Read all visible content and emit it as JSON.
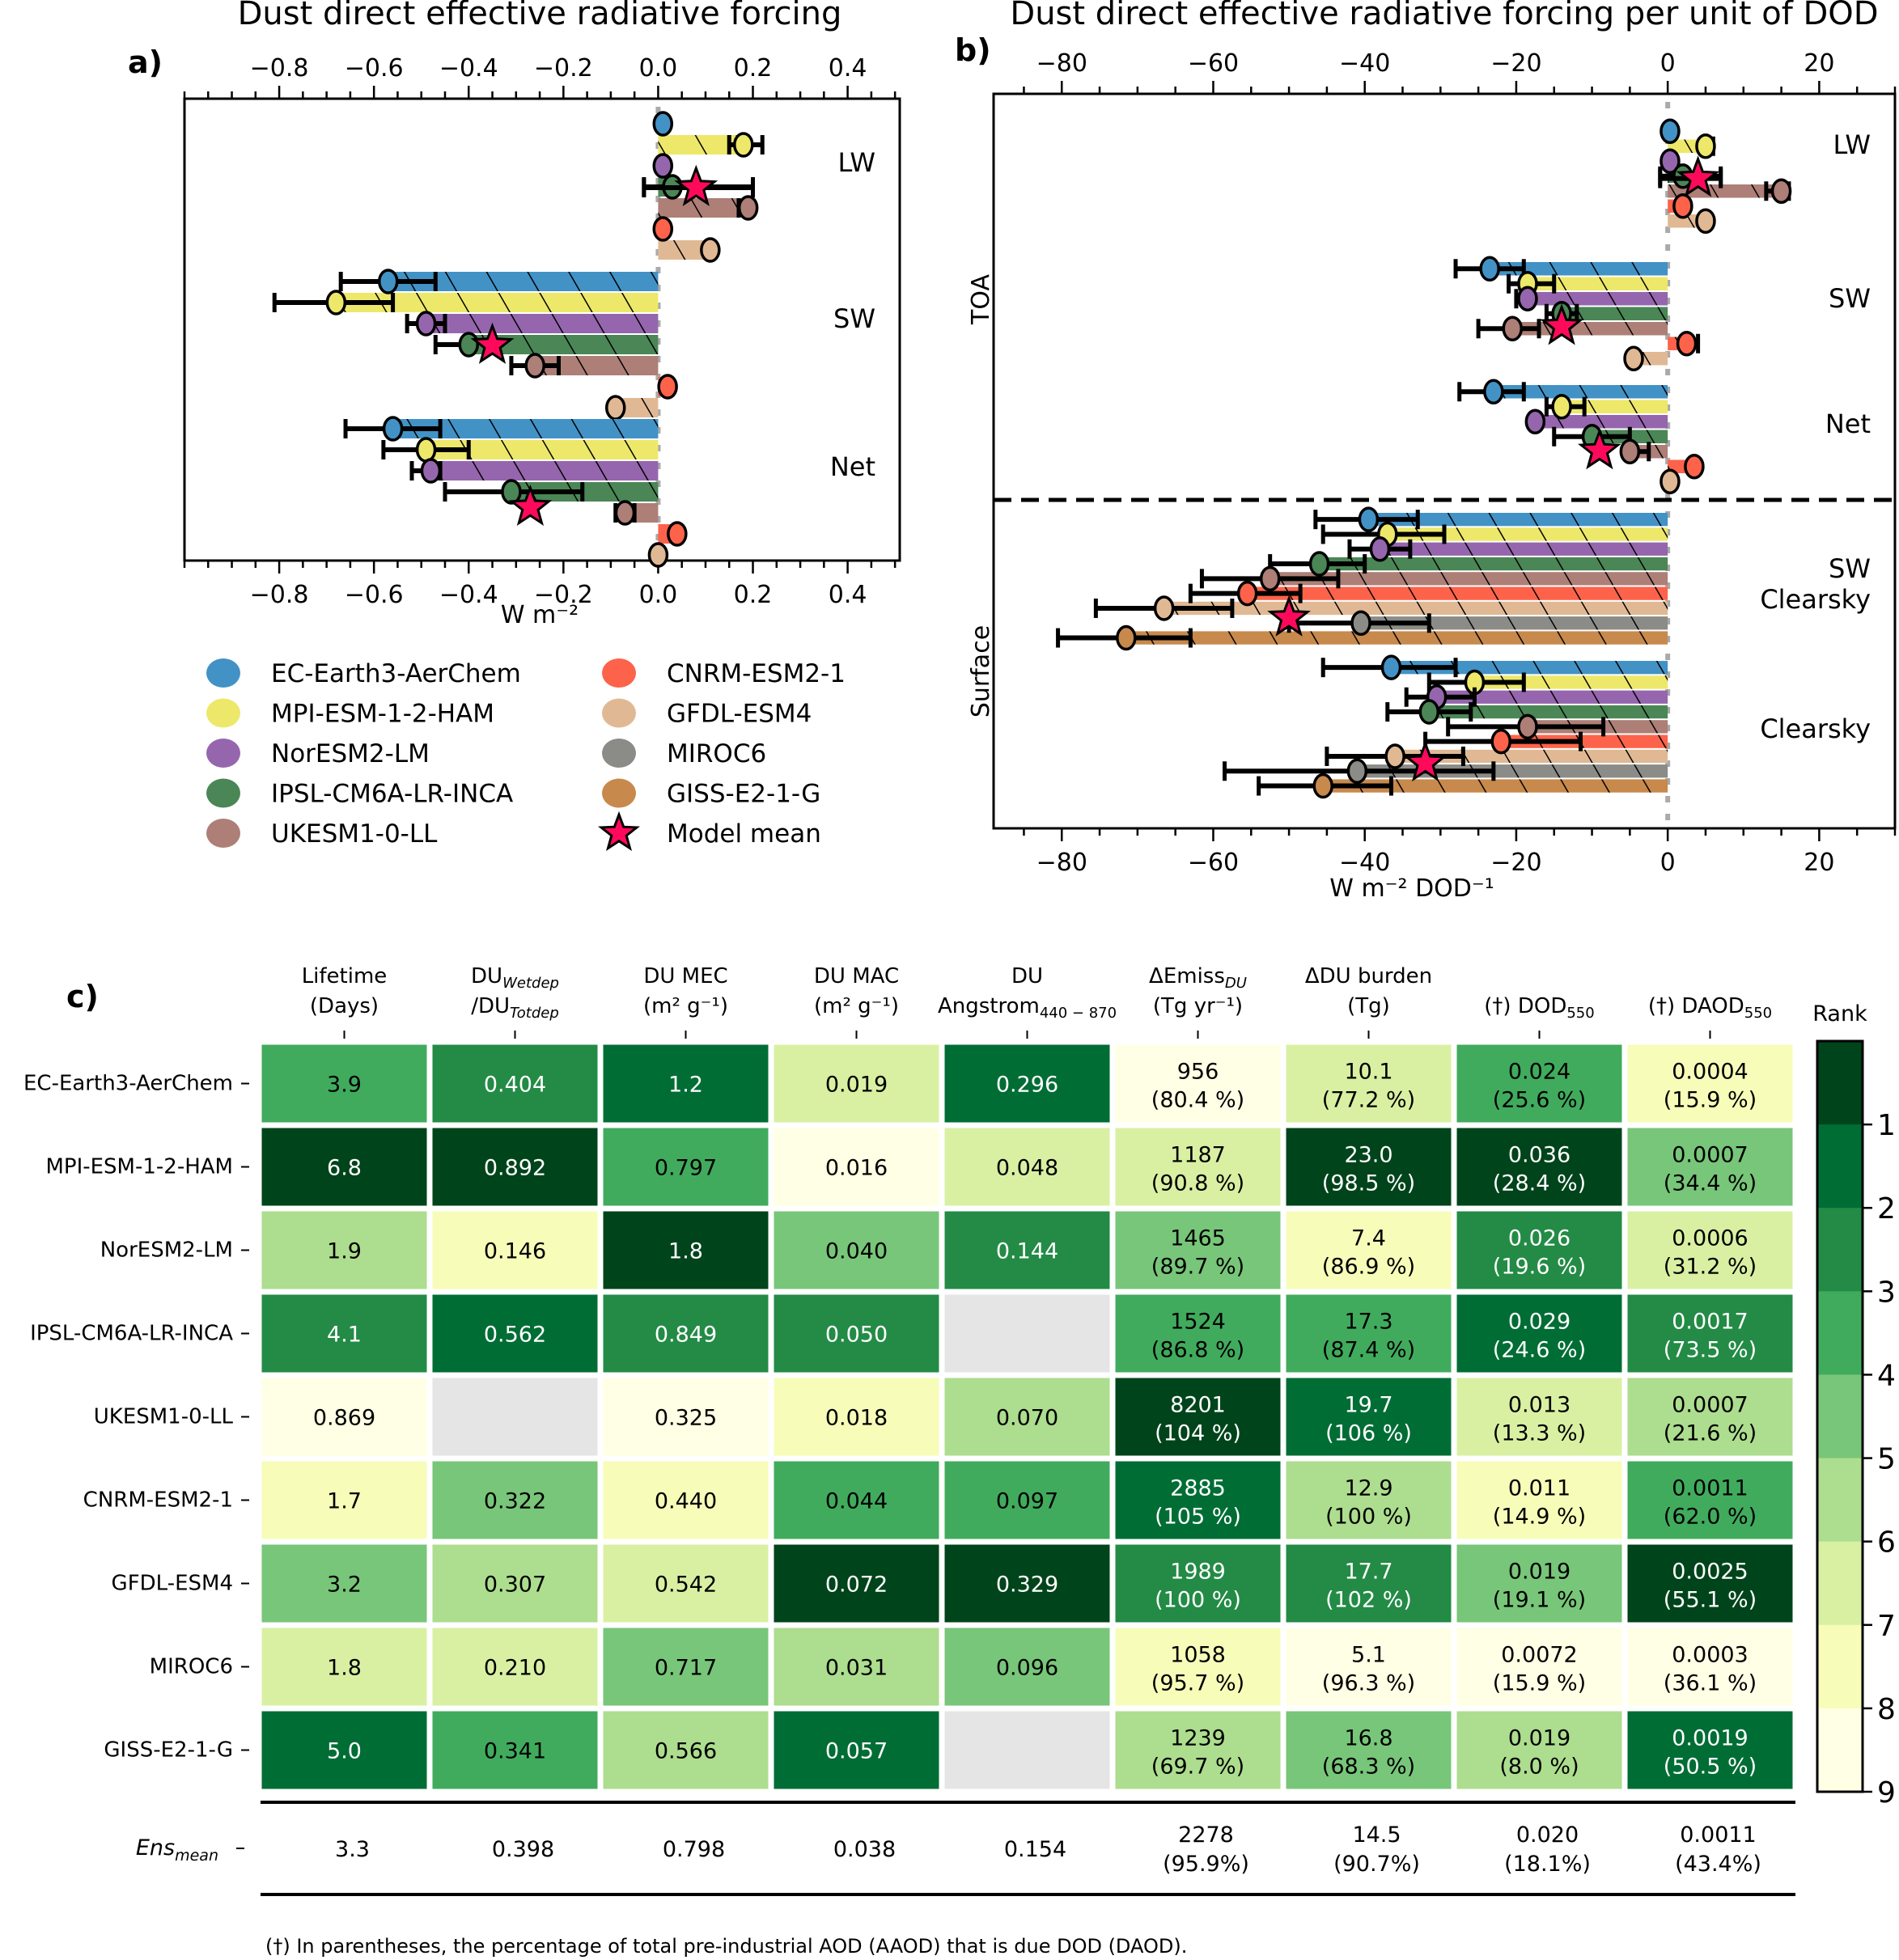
{
  "models": [
    {
      "name": "EC-Earth3-AerChem",
      "color": "#4292c6"
    },
    {
      "name": "MPI-ESM-1-2-HAM",
      "color": "#ede86a"
    },
    {
      "name": "NorESM2-LM",
      "color": "#9566ad"
    },
    {
      "name": "IPSL-CM6A-LR-INCA",
      "color": "#4b8656"
    },
    {
      "name": "UKESM1-0-LL",
      "color": "#ad7f77"
    },
    {
      "name": "CNRM-ESM2-1",
      "color": "#fd634a"
    },
    {
      "name": "GFDL-ESM4",
      "color": "#e0b994"
    },
    {
      "name": "MIROC6",
      "color": "#8b8c87"
    },
    {
      "name": "GISS-E2-1-G",
      "color": "#c7894c"
    }
  ],
  "legend": {
    "mean_label": "Model mean",
    "mean_color": "#ff0a5b"
  },
  "chart_data": [
    {
      "id": "a",
      "panel_label": "a)",
      "type": "bar",
      "orientation": "horizontal",
      "title": "Dust direct effective radiative forcing",
      "xlabel": "W m⁻²",
      "xlim": [
        -1.0,
        0.51
      ],
      "xticks": [
        -0.8,
        -0.6,
        -0.4,
        -0.2,
        0.0,
        0.2,
        0.4
      ],
      "xticklabels": [
        "−0.8",
        "−0.6",
        "−0.4",
        "−0.2",
        "0.0",
        "0.2",
        "0.4"
      ],
      "groups": [
        {
          "label": "LW",
          "values": [
            0.01,
            0.18,
            0.01,
            0.03,
            0.19,
            0.01,
            0.11
          ],
          "errors": [
            null,
            [
              0.15,
              0.22
            ],
            null,
            [
              -0.03,
              0.2
            ],
            [
              0.17,
              0.2
            ],
            null,
            null
          ],
          "mean": 0.08,
          "mean_err": [
            -0.03,
            0.2
          ]
        },
        {
          "label": "SW",
          "values": [
            -0.57,
            -0.68,
            -0.49,
            -0.4,
            -0.26,
            0.02,
            -0.09
          ],
          "errors": [
            [
              -0.67,
              -0.47
            ],
            [
              -0.81,
              -0.56
            ],
            [
              -0.53,
              -0.45
            ],
            [
              -0.47,
              -0.4
            ],
            [
              -0.31,
              -0.21
            ],
            null,
            [
              -0.1,
              -0.09
            ]
          ],
          "mean": -0.35,
          "mean_err": null
        },
        {
          "label": "Net",
          "values": [
            -0.56,
            -0.49,
            -0.48,
            -0.31,
            -0.07,
            0.04,
            0.0
          ],
          "errors": [
            [
              -0.66,
              -0.46
            ],
            [
              -0.58,
              -0.4
            ],
            [
              -0.52,
              -0.46
            ],
            [
              -0.45,
              -0.16
            ],
            [
              -0.09,
              -0.05
            ],
            null,
            null
          ],
          "mean": -0.27,
          "mean_err": null
        }
      ]
    },
    {
      "id": "b",
      "panel_label": "b)",
      "type": "bar",
      "orientation": "horizontal",
      "title": "Dust direct effective radiative forcing per unit of DOD",
      "xlabel": "W m⁻² DOD⁻¹",
      "xlim": [
        -89,
        30
      ],
      "xticks": [
        -80,
        -60,
        -40,
        -20,
        0,
        20
      ],
      "xticklabels": [
        "−80",
        "−60",
        "−40",
        "−20",
        "0",
        "20"
      ],
      "section_labels": [
        "TOA",
        "Surface"
      ],
      "groups": [
        {
          "label": "LW",
          "section": "TOA",
          "values": [
            0.3,
            5,
            0.3,
            2,
            15,
            2,
            5
          ],
          "errors": [
            null,
            [
              5,
              6
            ],
            null,
            [
              -1,
              7
            ],
            [
              13,
              16
            ],
            null,
            null
          ],
          "mean": 4,
          "mean_err": [
            -1,
            7
          ]
        },
        {
          "label": "SW",
          "section": "TOA",
          "values": [
            -23.5,
            -18.5,
            -18.5,
            -14,
            -20.5,
            2.5,
            -4.5
          ],
          "errors": [
            [
              -28,
              -19
            ],
            [
              -21,
              -15
            ],
            [
              -20,
              -18
            ],
            [
              -16,
              -12
            ],
            [
              -25,
              -17
            ],
            [
              2,
              4
            ],
            null
          ],
          "mean": -14,
          "mean_err": null
        },
        {
          "label": "Net",
          "section": "TOA",
          "values": [
            -23,
            -14,
            -17.5,
            -10,
            -5,
            3.5,
            0.3
          ],
          "errors": [
            [
              -27.5,
              -19
            ],
            [
              -16,
              -11
            ],
            [
              -18,
              -17
            ],
            [
              -15,
              -5
            ],
            [
              -5,
              -2.5
            ],
            [
              3,
              4
            ],
            null
          ],
          "mean": -9,
          "mean_err": null
        },
        {
          "label": "SW\nClearsky",
          "section": "Surface",
          "values": [
            -39.5,
            -37,
            -38,
            -46,
            -52.5,
            -55.5,
            -66.5,
            -40.5,
            -71.5
          ],
          "errors": [
            [
              -46.5,
              -33
            ],
            [
              -45.5,
              -29.5
            ],
            [
              -42,
              -34
            ],
            [
              -52.5,
              -40
            ],
            [
              -61.5,
              -43.5
            ],
            [
              -63,
              -48.5
            ],
            [
              -75.5,
              -57.5
            ],
            [
              -50,
              -31.5
            ],
            [
              -80.5,
              -63
            ]
          ],
          "mean": -50,
          "mean_err": null
        },
        {
          "label": "Clearsky",
          "section": "Surface",
          "values": [
            -36.5,
            -25.5,
            -30.5,
            -31.5,
            -18.5,
            -22,
            -36,
            -41,
            -45.5
          ],
          "errors": [
            [
              -45.5,
              -28
            ],
            [
              -31.5,
              -19
            ],
            [
              -34.5,
              -25.5
            ],
            [
              -37,
              -26
            ],
            [
              -29,
              -8.5
            ],
            [
              -32,
              -11.5
            ],
            [
              -45,
              -27
            ],
            [
              -58.5,
              -23
            ],
            [
              -54,
              -36.5
            ]
          ],
          "mean": -32,
          "mean_err": null
        }
      ]
    },
    {
      "id": "c",
      "panel_label": "c)",
      "type": "heatmap",
      "columns": [
        {
          "main": "Lifetime",
          "sub": "(Days)"
        },
        {
          "main": "DU",
          "main_sub": "Wetdep",
          "sub": "/DU",
          "sub_sub": "Totdep"
        },
        {
          "main": "DU MEC",
          "sub": "(m² g⁻¹)"
        },
        {
          "main": "DU MAC",
          "sub": "(m² g⁻¹)"
        },
        {
          "main": "DU",
          "sub": "Angstrom",
          "sub_sub": "440 − 870"
        },
        {
          "main": "ΔEmiss",
          "main_sub": "DU",
          "sub": "(Tg yr⁻¹)"
        },
        {
          "main": "ΔDU burden",
          "sub": "(Tg)"
        },
        {
          "main": "",
          "sub": "(†) DOD",
          "sub_sub": "550"
        },
        {
          "main": "",
          "sub": "(†) DAOD",
          "sub_sub": "550"
        }
      ],
      "rows": [
        {
          "model": "EC-Earth3-AerChem",
          "cells": [
            [
              "3.9",
              ""
            ],
            [
              "0.404",
              ""
            ],
            [
              "1.2",
              ""
            ],
            [
              "0.019",
              ""
            ],
            [
              "0.296",
              ""
            ],
            [
              "956",
              "(80.4 %)"
            ],
            [
              "10.1",
              "(77.2 %)"
            ],
            [
              "0.024",
              "(25.6 %)"
            ],
            [
              "0.0004",
              "(15.9 %)"
            ]
          ],
          "ranks": [
            4,
            3,
            2,
            7,
            2,
            9,
            7,
            4,
            8
          ]
        },
        {
          "model": "MPI-ESM-1-2-HAM",
          "cells": [
            [
              "6.8",
              ""
            ],
            [
              "0.892",
              ""
            ],
            [
              "0.797",
              ""
            ],
            [
              "0.016",
              ""
            ],
            [
              "0.048",
              ""
            ],
            [
              "1187",
              "(90.8 %)"
            ],
            [
              "23.0",
              "(98.5 %)"
            ],
            [
              "0.036",
              "(28.4 %)"
            ],
            [
              "0.0007",
              "(34.4 %)"
            ]
          ],
          "ranks": [
            1,
            1,
            4,
            9,
            7,
            7,
            1,
            1,
            5
          ]
        },
        {
          "model": "NorESM2-LM",
          "cells": [
            [
              "1.9",
              ""
            ],
            [
              "0.146",
              ""
            ],
            [
              "1.8",
              ""
            ],
            [
              "0.040",
              ""
            ],
            [
              "0.144",
              ""
            ],
            [
              "1465",
              "(89.7 %)"
            ],
            [
              "7.4",
              "(86.9 %)"
            ],
            [
              "0.026",
              "(19.6 %)"
            ],
            [
              "0.0006",
              "(31.2 %)"
            ]
          ],
          "ranks": [
            6,
            8,
            1,
            5,
            3,
            5,
            8,
            3,
            7
          ]
        },
        {
          "model": "IPSL-CM6A-LR-INCA",
          "cells": [
            [
              "4.1",
              ""
            ],
            [
              "0.562",
              ""
            ],
            [
              "0.849",
              ""
            ],
            [
              "0.050",
              ""
            ],
            [
              "",
              ""
            ],
            [
              "1524",
              "(86.8 %)"
            ],
            [
              "17.3",
              "(87.4 %)"
            ],
            [
              "0.029",
              "(24.6 %)"
            ],
            [
              "0.0017",
              "(73.5 %)"
            ]
          ],
          "ranks": [
            3,
            2,
            3,
            3,
            null,
            4,
            4,
            2,
            3
          ]
        },
        {
          "model": "UKESM1-0-LL",
          "cells": [
            [
              "0.869",
              ""
            ],
            [
              "",
              ""
            ],
            [
              "0.325",
              ""
            ],
            [
              "0.018",
              ""
            ],
            [
              "0.070",
              ""
            ],
            [
              "8201",
              "(104 %)"
            ],
            [
              "19.7",
              "(106 %)"
            ],
            [
              "0.013",
              "(13.3 %)"
            ],
            [
              "0.0007",
              "(21.6 %)"
            ]
          ],
          "ranks": [
            9,
            null,
            9,
            8,
            6,
            1,
            2,
            7,
            6
          ]
        },
        {
          "model": "CNRM-ESM2-1",
          "cells": [
            [
              "1.7",
              ""
            ],
            [
              "0.322",
              ""
            ],
            [
              "0.440",
              ""
            ],
            [
              "0.044",
              ""
            ],
            [
              "0.097",
              ""
            ],
            [
              "2885",
              "(105 %)"
            ],
            [
              "12.9",
              "(100 %)"
            ],
            [
              "0.011",
              "(14.9 %)"
            ],
            [
              "0.0011",
              "(62.0 %)"
            ]
          ],
          "ranks": [
            8,
            5,
            8,
            4,
            4,
            2,
            6,
            8,
            4
          ]
        },
        {
          "model": "GFDL-ESM4",
          "cells": [
            [
              "3.2",
              ""
            ],
            [
              "0.307",
              ""
            ],
            [
              "0.542",
              ""
            ],
            [
              "0.072",
              ""
            ],
            [
              "0.329",
              ""
            ],
            [
              "1989",
              "(100 %)"
            ],
            [
              "17.7",
              "(102 %)"
            ],
            [
              "0.019",
              "(19.1 %)"
            ],
            [
              "0.0025",
              "(55.1 %)"
            ]
          ],
          "ranks": [
            5,
            6,
            7,
            1,
            1,
            3,
            3,
            5,
            1
          ]
        },
        {
          "model": "MIROC6",
          "cells": [
            [
              "1.8",
              ""
            ],
            [
              "0.210",
              ""
            ],
            [
              "0.717",
              ""
            ],
            [
              "0.031",
              ""
            ],
            [
              "0.096",
              ""
            ],
            [
              "1058",
              "(95.7 %)"
            ],
            [
              "5.1",
              "(96.3 %)"
            ],
            [
              "0.0072",
              "(15.9 %)"
            ],
            [
              "0.0003",
              "(36.1 %)"
            ]
          ],
          "ranks": [
            7,
            7,
            5,
            6,
            5,
            8,
            9,
            9,
            9
          ]
        },
        {
          "model": "GISS-E2-1-G",
          "cells": [
            [
              "5.0",
              ""
            ],
            [
              "0.341",
              ""
            ],
            [
              "0.566",
              ""
            ],
            [
              "0.057",
              ""
            ],
            [
              "",
              ""
            ],
            [
              "1239",
              "(69.7 %)"
            ],
            [
              "16.8",
              "(68.3 %)"
            ],
            [
              "0.019",
              "(8.0 %)"
            ],
            [
              "0.0019",
              "(50.5 %)"
            ]
          ],
          "ranks": [
            2,
            4,
            6,
            2,
            null,
            6,
            5,
            6,
            2
          ]
        }
      ],
      "ensemble": {
        "label": "Ens",
        "label_sub": "mean",
        "cells": [
          [
            "3.3",
            ""
          ],
          [
            "0.398",
            ""
          ],
          [
            "0.798",
            ""
          ],
          [
            "0.038",
            ""
          ],
          [
            "0.154",
            ""
          ],
          [
            "2278",
            "(95.9%)"
          ],
          [
            "14.5",
            "(90.7%)"
          ],
          [
            "0.020",
            "(18.1%)"
          ],
          [
            "0.0011",
            "(43.4%)"
          ]
        ]
      },
      "colorbar": {
        "title": "Rank",
        "ticks": [
          "1",
          "2",
          "3",
          "4",
          "5",
          "6",
          "7",
          "8",
          "9"
        ],
        "colors": [
          "#00441b",
          "#006d35",
          "#238b45",
          "#41ab5d",
          "#78c679",
          "#addd8e",
          "#d9f0a3",
          "#f7fcb9",
          "#ffffe5"
        ],
        "missing_color": "#e5e5e5"
      },
      "footnote": "(†) In parentheses, the percentage of total pre-industrial AOD (AAOD) that is due DOD (DAOD)."
    }
  ]
}
